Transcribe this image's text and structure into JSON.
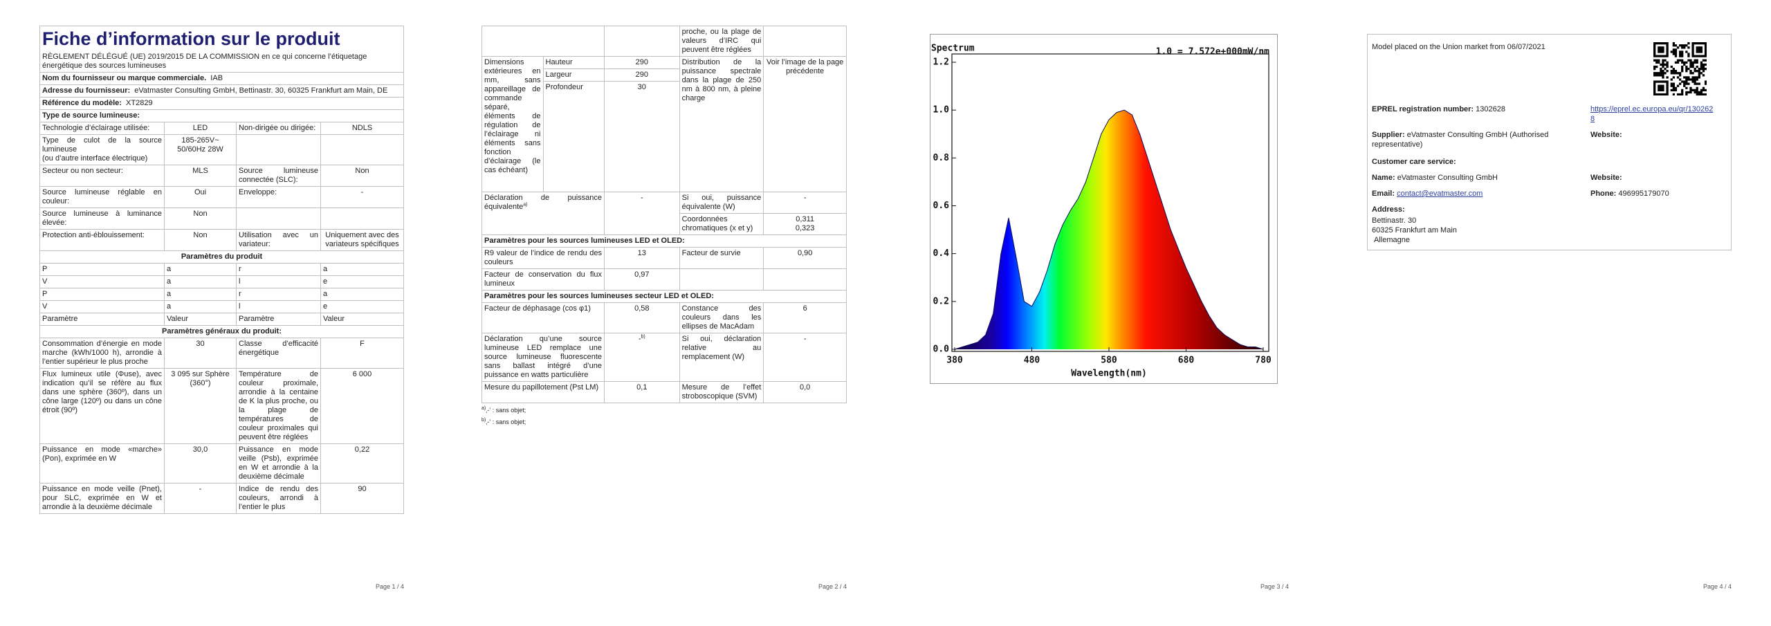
{
  "page1": {
    "title": "Fiche d’information sur le produit",
    "subtitle": "RÈGLEMENT DÉLÉGUÉ (UE) 2019/2015 DE LA COMMISSION en ce qui concerne l’étiquetage énergétique des sources lumineuses",
    "info": [
      {
        "label": "Nom du fournisseur ou marque commerciale.",
        "value": "IAB"
      },
      {
        "label": "Adresse du fournisseur:",
        "value": "eVatmaster Consulting GmbH, Bettinastr. 30, 60325 Frankfurt am Main, DE"
      },
      {
        "label": "Référence du modèle:",
        "value": "XT2829"
      }
    ],
    "type_heading": "Type de source lumineuse:",
    "rows": [
      [
        "Technologie d’éclairage utilisée:",
        "LED",
        "Non-dirigée ou dirigée:",
        "NDLS"
      ],
      [
        "Type de culot de la source lumineuse\n(ou d’autre interface électrique)",
        "185-265V~\n50/60Hz 28W"
      ],
      [
        "Secteur ou non secteur:",
        "MLS",
        "Source lumineuse connectée (SLC):",
        "Non"
      ],
      [
        "Source lumineuse réglable en couleur:",
        "Oui",
        "Enveloppe:",
        "-"
      ],
      [
        "Source lumineuse à luminance élevée:",
        "Non"
      ],
      [
        "Protection anti-éblouissement:",
        "Non",
        "Utilisation avec un variateur:",
        "Uniquement avec des variateurs spécifiques"
      ]
    ],
    "product_heading": "Paramètres du produit",
    "column_headers": [
      "Paramètre",
      "Valeur",
      "Paramètre",
      "Valeur"
    ],
    "general_heading": "Paramètres généraux du produit:",
    "general_rows": [
      [
        "Consommation d’énergie en mode marche (kWh/1000 h), arrondie à l’entier supérieur le plus proche",
        "30",
        "Classe d’efficacité énergétique",
        "F"
      ],
      [
        "Flux lumineux utile (Φuse), avec indication qu’il se réfère au flux dans une sphère (360º), dans un cône large (120º) ou dans un cône étroit (90º)",
        "3 095 sur Sphère (360°)",
        "Température de couleur proximale, arrondie à la centaine de K la plus proche, ou la plage de températures de couleur proximales qui peuvent être réglées",
        "6 000"
      ],
      [
        "Puissance en mode «marche» (Pon), exprimée en W",
        "30,0",
        "Puissance en mode veille (Psb), exprimée en W et arrondie à la deuxième décimale",
        "0,22"
      ],
      [
        "Puissance en mode veille (Pnet), pour SLC, exprimée en W et arrondie à la deuxième décimale",
        "-",
        "Indice de rendu des couleurs, arrondi à l’entier le plus",
        "90"
      ]
    ],
    "footer": "Page 1 / 4"
  },
  "page2": {
    "continued": "proche, ou la plage de valeurs d’IRC qui peuvent être réglées",
    "dimensions": {
      "label": "Dimensions extérieures en mm, sans appareillage de commande séparé, éléments de régulation de l’éclairage ni éléments sans fonction d’éclairage (le cas échéant)",
      "items": [
        {
          "label": "Hauteur",
          "value": "290"
        },
        {
          "label": "Largeur",
          "value": "290"
        },
        {
          "label": "Profondeur",
          "value": "30"
        }
      ]
    },
    "spectral": {
      "label": "Distribution de la puissance spectrale dans la plage de 250 nm à 800 nm, à pleine charge",
      "value": "Voir l’image de la page précédente"
    },
    "equivalent": {
      "label": "Déclaration de puissance équivalente",
      "note": "a)",
      "value": "-",
      "if_yes": "Si oui, puissance équivalente (W)",
      "if_yes_value": "-"
    },
    "chromaticity": {
      "label": "Coordonnées chromatiques (x et y)",
      "values": [
        "0,311",
        "0,323"
      ]
    },
    "led_heading": "Paramètres pour les sources lumineuses LED et OLED:",
    "led_rows": [
      [
        "R9 valeur de l’indice de rendu des couleurs",
        "13",
        "Facteur de survie",
        "0,90"
      ],
      [
        "Facteur de conservation du flux lumineux",
        "0,97"
      ]
    ],
    "mains_heading": "Paramètres pour les sources lumineuses secteur LED et OLED:",
    "mains_rows": [
      [
        "Facteur de déphasage (cos φ1)",
        "0,58",
        "Constance des couleurs dans les ellipses de MacAdam",
        "6"
      ],
      [
        "Déclaration qu’une source lumineuse LED remplace une source lumineuse fluorescente sans ballast intégré d’une puissance en watts particulière",
        "-",
        "Si oui, déclaration relative au remplacement (W)",
        "-"
      ],
      [
        "Mesure du papillotement (Pst LM)",
        "0,1",
        "Mesure de l’effet stroboscopique (SVM)",
        "0,0"
      ]
    ],
    "replacement_note": "b)",
    "notes": [
      {
        "mark": "a)",
        "text": "‚-‛ : sans objet;"
      },
      {
        "mark": "b)",
        "text": "‚-‛ : sans objet;"
      }
    ],
    "footer": "Page 2 / 4"
  },
  "page3": {
    "spectrum": {
      "title": "Spectrum",
      "annotation": "1.0 = 7.572e+000mW/nm",
      "xlabel": "Wavelength(nm)",
      "x": [
        380,
        390,
        400,
        410,
        420,
        430,
        440,
        450,
        460,
        470,
        480,
        490,
        500,
        510,
        520,
        530,
        540,
        550,
        560,
        570,
        580,
        590,
        600,
        610,
        620,
        630,
        640,
        650,
        660,
        670,
        680,
        690,
        700,
        710,
        720,
        730,
        740,
        750,
        760,
        770,
        780
      ],
      "values": [
        0,
        0.01,
        0.02,
        0.03,
        0.06,
        0.15,
        0.4,
        0.55,
        0.38,
        0.2,
        0.18,
        0.24,
        0.33,
        0.44,
        0.52,
        0.58,
        0.63,
        0.7,
        0.8,
        0.9,
        0.96,
        0.99,
        1.0,
        0.98,
        0.9,
        0.8,
        0.7,
        0.6,
        0.5,
        0.42,
        0.34,
        0.27,
        0.2,
        0.14,
        0.09,
        0.06,
        0.04,
        0.02,
        0.01,
        0.01,
        0
      ],
      "xlim": [
        380,
        780
      ],
      "ylim": [
        0,
        1.2
      ],
      "xticks": [
        380,
        480,
        580,
        680,
        780
      ],
      "yticks": [
        {
          "value": 0,
          "label": "0.0"
        },
        {
          "value": 0.2,
          "label": "0.2"
        },
        {
          "value": 0.4,
          "label": "0.4"
        },
        {
          "value": 0.6,
          "label": "0.6"
        },
        {
          "value": 0.8,
          "label": "0.8"
        },
        {
          "value": 1,
          "label": "1.0"
        },
        {
          "value": 1.2,
          "label": "1.2"
        }
      ]
    },
    "footer": "Page 3 / 4"
  },
  "page4": {
    "market": "Model placed on the Union market from 06/07/2021",
    "eprel_label": "EPREL registration number:",
    "eprel_value": "1302628",
    "eprel_link": "https://eprel.ec.europa.eu/qr/1302628",
    "supplier_label": "Supplier:",
    "supplier_value": "eVatmaster Consulting GmbH (Authorised representative)",
    "website_label": "Website:",
    "care_heading": "Customer care service:",
    "name_label": "Name:",
    "name_value": "eVatmaster Consulting GmbH",
    "care_website_label": "Website:",
    "email_label": "Email:",
    "email_value": "contact@evatmaster.com",
    "phone_label": "Phone:",
    "phone_value": "496995179070",
    "address_label": "Address:",
    "address_lines": [
      "Bettinastr. 30",
      "60325 Frankfurt am Main",
      "Allemagne"
    ],
    "footer": "Page 4 / 4"
  }
}
